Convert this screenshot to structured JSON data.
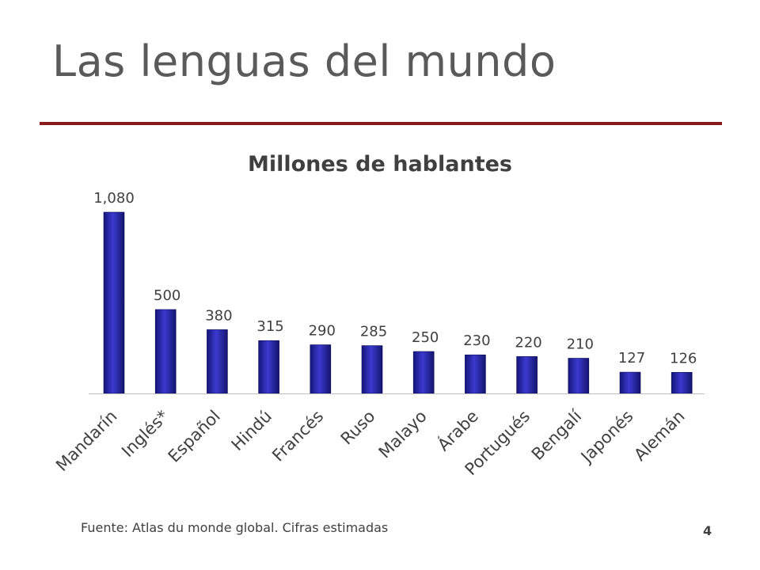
{
  "slide": {
    "title": "Las lenguas del mundo",
    "source": "Fuente: Atlas du monde global. Cifras estimadas",
    "page_number": "4",
    "rule_color": "#8b1a1a"
  },
  "chart_data": {
    "type": "bar",
    "title": "Millones de hablantes",
    "xlabel": "",
    "ylabel": "",
    "categories": [
      "Mandarín",
      "Inglés*",
      "Español",
      "Hindú",
      "Francés",
      "Ruso",
      "Malayo",
      "Árabe",
      "Portugués",
      "Bengalí",
      "Japonés",
      "Alemán"
    ],
    "values": [
      1080,
      500,
      380,
      315,
      290,
      285,
      250,
      230,
      220,
      210,
      127,
      126
    ],
    "value_labels": [
      "1,080",
      "500",
      "380",
      "315",
      "290",
      "285",
      "250",
      "230",
      "220",
      "210",
      "127",
      "126"
    ],
    "ylim": [
      0,
      1080
    ],
    "grid": false,
    "legend": "none",
    "bar_color": "#2323a8"
  }
}
